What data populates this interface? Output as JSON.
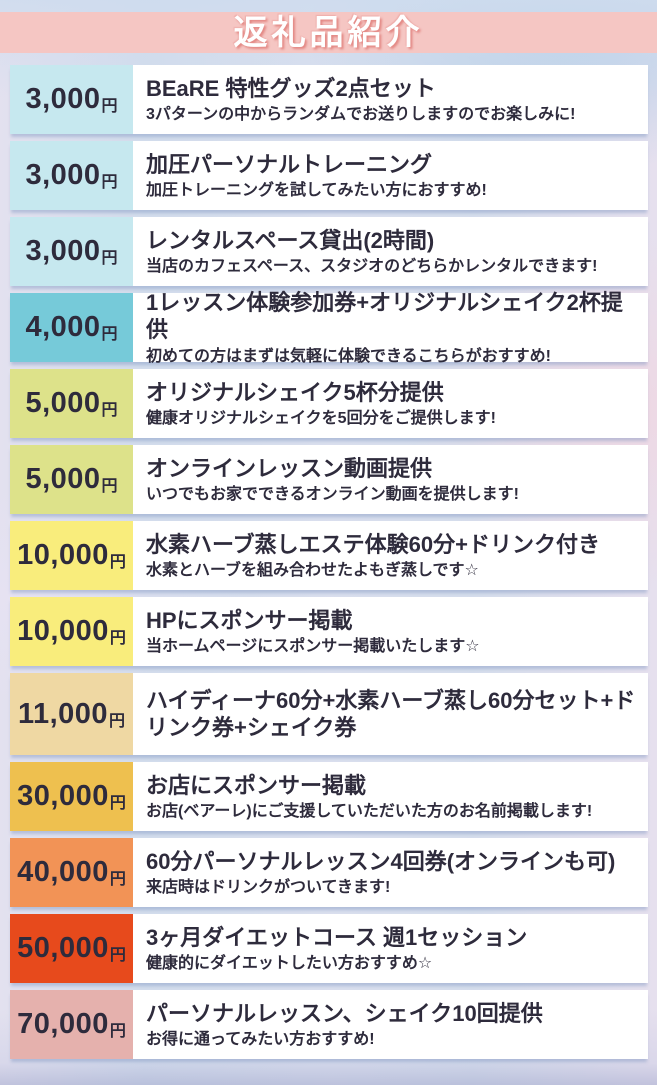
{
  "header": {
    "title": "返礼品紹介"
  },
  "colors": {
    "title_band": "#f5c6c3",
    "title_text": "#ffffff",
    "title_shadow": "#e28480",
    "text": "#2e2b3c",
    "description_bg": "#ffffff"
  },
  "rewards": [
    {
      "price": "3,000",
      "unit": "円",
      "color": "#c6e8ef",
      "title": "BEaRE 特性グッズ2点セット",
      "subtitle": "3パターンの中からランダムでお送りしますのでお楽しみに!"
    },
    {
      "price": "3,000",
      "unit": "円",
      "color": "#c6e8ef",
      "title": "加圧パーソナルトレーニング",
      "subtitle": "加圧トレーニングを試してみたい方におすすめ!"
    },
    {
      "price": "3,000",
      "unit": "円",
      "color": "#c6e8ef",
      "title": "レンタルスペース貸出(2時間)",
      "subtitle": "当店のカフェスペース、スタジオのどちらかレンタルできます!"
    },
    {
      "price": "4,000",
      "unit": "円",
      "color": "#76cad9",
      "title": "1レッスン体験参加券+オリジナルシェイク2杯提供",
      "subtitle": "初めての方はまずは気軽に体験できるこちらがおすすめ!"
    },
    {
      "price": "5,000",
      "unit": "円",
      "color": "#dde28a",
      "title": "オリジナルシェイク5杯分提供",
      "subtitle": "健康オリジナルシェイクを5回分をご提供します!"
    },
    {
      "price": "5,000",
      "unit": "円",
      "color": "#dde28a",
      "title": "オンラインレッスン動画提供",
      "subtitle": "いつでもお家でできるオンライン動画を提供します!"
    },
    {
      "price": "10,000",
      "unit": "円",
      "color": "#f9ed7c",
      "title": "水素ハーブ蒸しエステ体験60分+ドリンク付き",
      "subtitle": "水素とハーブを組み合わせたよもぎ蒸しです☆"
    },
    {
      "price": "10,000",
      "unit": "円",
      "color": "#f9ed7c",
      "title": "HPにスポンサー掲載",
      "subtitle": "当ホームページにスポンサー掲載いたします☆"
    },
    {
      "price": "11,000",
      "unit": "円",
      "color": "#efd8a3",
      "title": "ハイディーナ60分+水素ハーブ蒸し60分セット+ドリンク券+シェイク券",
      "subtitle": null,
      "tall": true
    },
    {
      "price": "30,000",
      "unit": "円",
      "color": "#eec04f",
      "title": "お店にスポンサー掲載",
      "subtitle": "お店(ベアーレ)にご支援していただいた方のお名前掲載します!"
    },
    {
      "price": "40,000",
      "unit": "円",
      "color": "#f29356",
      "title": "60分パーソナルレッスン4回券(オンラインも可)",
      "subtitle": "来店時はドリンクがついてきます!"
    },
    {
      "price": "50,000",
      "unit": "円",
      "color": "#e74a1c",
      "title": "3ヶ月ダイエットコース 週1セッション",
      "subtitle": "健康的にダイエットしたい方おすすめ☆"
    },
    {
      "price": "70,000",
      "unit": "円",
      "color": "#e5b1ad",
      "title": "パーソナルレッスン、シェイク10回提供",
      "subtitle": "お得に通ってみたい方おすすめ!"
    }
  ]
}
